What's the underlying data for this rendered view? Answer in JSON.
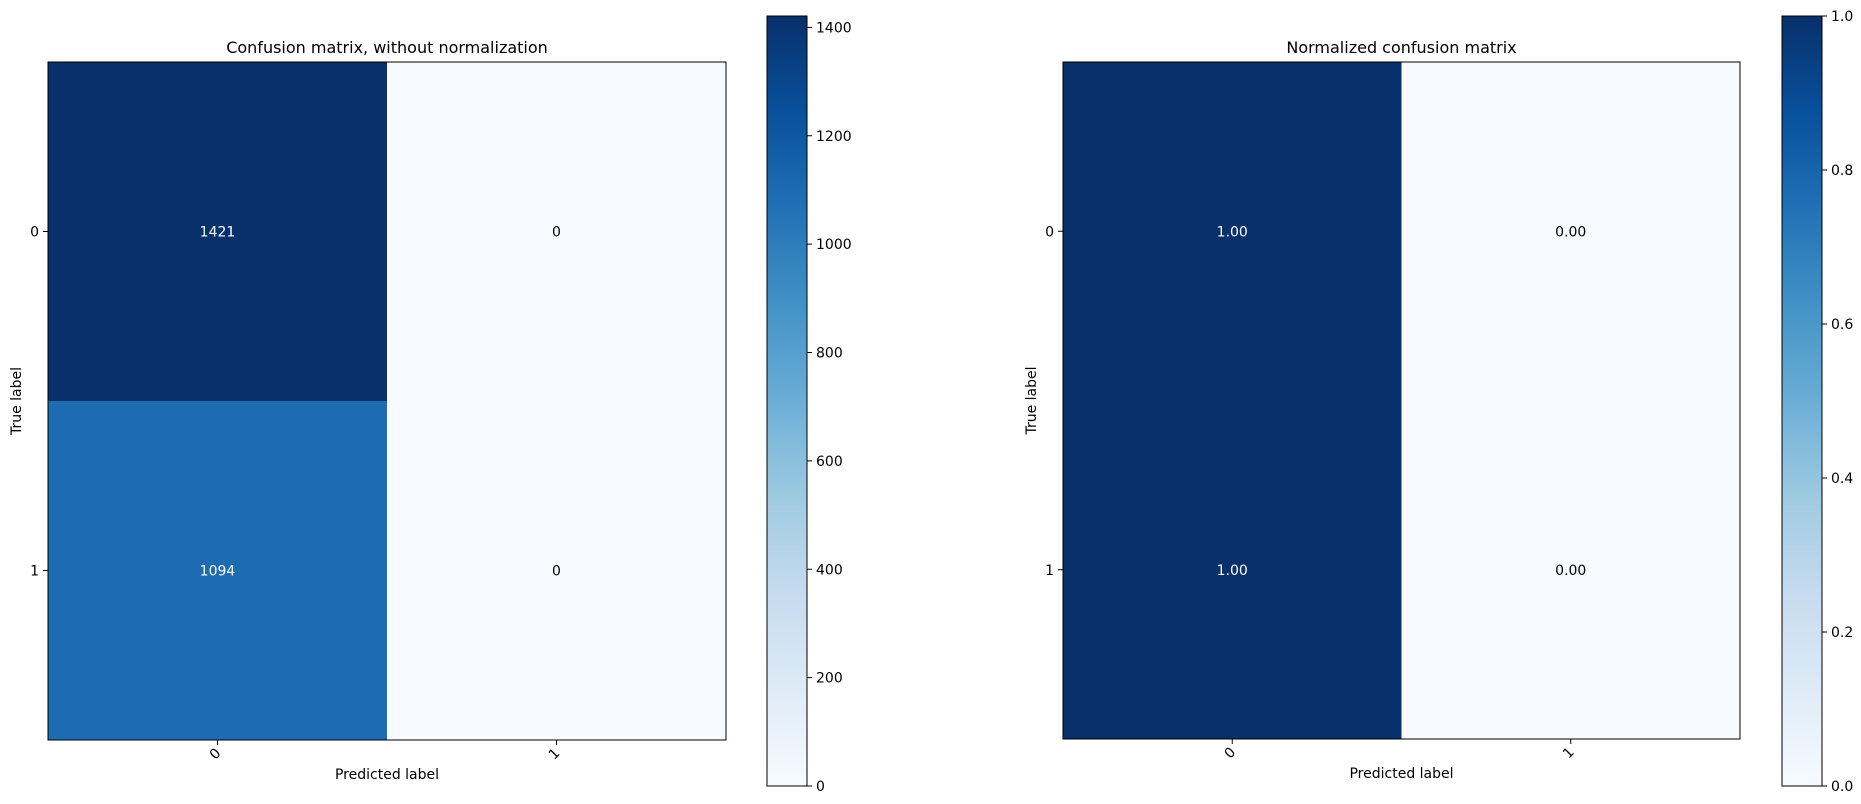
{
  "chart_data": [
    {
      "type": "heatmap",
      "title": "Confusion matrix, without normalization",
      "xlabel": "Predicted label",
      "ylabel": "True label",
      "x_categories": [
        "0",
        "1"
      ],
      "y_categories": [
        "0",
        "1"
      ],
      "values": [
        [
          1421,
          0
        ],
        [
          1094,
          0
        ]
      ],
      "cell_labels": [
        [
          "1421",
          "0"
        ],
        [
          "1094",
          "0"
        ]
      ],
      "colormap": "Blues",
      "color_range": [
        0,
        1421
      ],
      "colorbar_ticks": [
        0,
        200,
        400,
        600,
        800,
        1000,
        1200,
        1400
      ],
      "colorbar_tick_labels": [
        "0",
        "200",
        "400",
        "600",
        "800",
        "1000",
        "1200",
        "1400"
      ]
    },
    {
      "type": "heatmap",
      "title": "Normalized confusion matrix",
      "xlabel": "Predicted label",
      "ylabel": "True label",
      "x_categories": [
        "0",
        "1"
      ],
      "y_categories": [
        "0",
        "1"
      ],
      "values": [
        [
          1.0,
          0.0
        ],
        [
          1.0,
          0.0
        ]
      ],
      "cell_labels": [
        [
          "1.00",
          "0.00"
        ],
        [
          "1.00",
          "0.00"
        ]
      ],
      "colormap": "Blues",
      "color_range": [
        0,
        1
      ],
      "colorbar_ticks": [
        0,
        0.2,
        0.4,
        0.6,
        0.8,
        1.0
      ],
      "colorbar_tick_labels": [
        "0.0",
        "0.2",
        "0.4",
        "0.6",
        "0.8",
        "1.0"
      ]
    }
  ]
}
